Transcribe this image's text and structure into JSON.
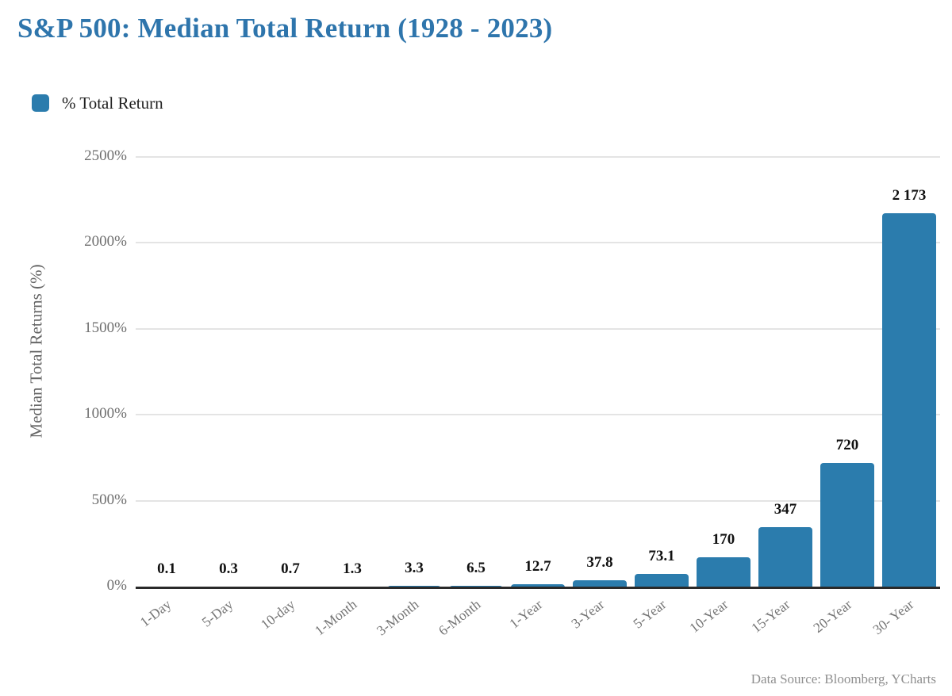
{
  "title": "S&P 500: Median Total Return (1928 - 2023)",
  "legend": {
    "label": "% Total Return",
    "swatch_color": "#2b7cad"
  },
  "footer": "Data Source: Bloomberg, YCharts",
  "colors": {
    "bar": "#2b7cad",
    "title": "#2e75ac",
    "gridline": "#e4e4e4",
    "axis_line": "#2a2a2a",
    "tick_text": "#6e6e6e",
    "x_tick_text": "#757575"
  },
  "chart_data": {
    "type": "bar",
    "title": "S&P 500: Median Total Return (1928 - 2023)",
    "series_name": "% Total Return",
    "categories": [
      "1-Day",
      "5-Day",
      "10-day",
      "1-Month",
      "3-Month",
      "6-Month",
      "1-Year",
      "3-Year",
      "5-Year",
      "10-Year",
      "15-Year",
      "20-Year",
      "30- Year"
    ],
    "values": [
      0.1,
      0.3,
      0.7,
      1.3,
      3.3,
      6.5,
      12.7,
      37.8,
      73.1,
      170,
      347,
      720,
      2173
    ],
    "value_labels": [
      "0.1",
      "0.3",
      "0.7",
      "1.3",
      "3.3",
      "6.5",
      "12.7",
      "37.8",
      "73.1",
      "170",
      "347",
      "720",
      "2 173"
    ],
    "xlabel": "",
    "ylabel": "Median Total Returns (%)",
    "ylim": [
      0,
      2500
    ],
    "ytick_step": 500,
    "ytick_labels": [
      "0%",
      "500%",
      "1000%",
      "1500%",
      "2000%",
      "2500%"
    ],
    "grid": true,
    "legend_position": "top-left",
    "bar_color": "#2b7cad"
  }
}
